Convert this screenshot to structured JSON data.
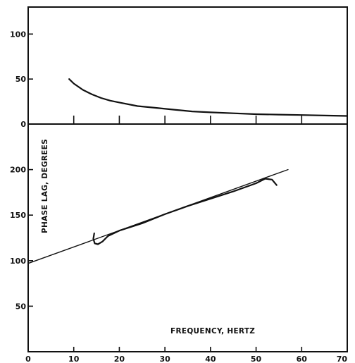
{
  "chart_data": [
    {
      "type": "line",
      "panel": "top",
      "title": "",
      "xlabel": "",
      "ylabel": "",
      "xlim": [
        0,
        70
      ],
      "ylim": [
        0,
        130
      ],
      "yticks": [
        0,
        50,
        100
      ],
      "ytick_labels": [
        "0",
        "50",
        "100"
      ],
      "xticks": [
        10,
        20,
        30,
        40,
        50,
        60
      ],
      "grid": false,
      "series": [
        {
          "color": "#111111",
          "x": [
            9,
            10,
            12,
            14,
            16,
            18,
            20,
            24,
            28,
            32,
            36,
            40,
            45,
            50,
            55,
            60,
            65,
            70
          ],
          "y": [
            50,
            45,
            38,
            33,
            29,
            26,
            24,
            20,
            18,
            16,
            14,
            13,
            12,
            11,
            10.5,
            10,
            9.5,
            9
          ]
        }
      ]
    },
    {
      "type": "line",
      "panel": "bottom",
      "title": "",
      "xlabel": "FREQUENCY, HERTZ",
      "ylabel": "PHASE LAG, DEGREES",
      "xlim": [
        0,
        70
      ],
      "ylim": [
        0,
        250
      ],
      "xticks": [
        0,
        10,
        20,
        30,
        40,
        50,
        60,
        70
      ],
      "xtick_labels": [
        "0",
        "10",
        "20",
        "30",
        "40",
        "50",
        "60",
        "70"
      ],
      "yticks": [
        50,
        100,
        150,
        200
      ],
      "ytick_labels": [
        "50",
        "100",
        "150",
        "200"
      ],
      "grid": false,
      "series": [
        {
          "name_hidden": true,
          "color": "#111111",
          "x": [
            0,
            57
          ],
          "y": [
            97,
            200
          ]
        },
        {
          "name_hidden": true,
          "color": "#111111",
          "x": [
            14.5,
            14.3,
            14.6,
            15.3,
            16.3,
            17.5,
            20,
            25,
            30,
            35,
            40,
            45,
            50,
            52,
            53.5,
            54.5
          ],
          "y": [
            130,
            124,
            119,
            118,
            121,
            127,
            133,
            141,
            151,
            160,
            168,
            176,
            185,
            190,
            189,
            183
          ]
        }
      ]
    }
  ]
}
